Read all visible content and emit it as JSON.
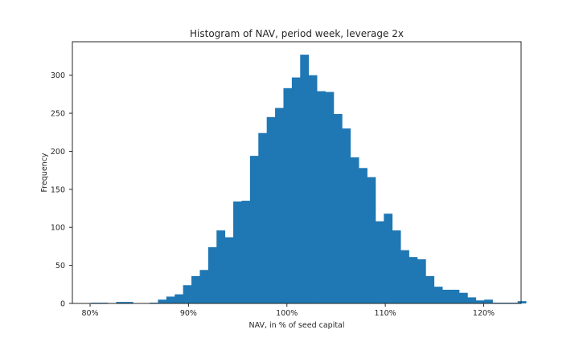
{
  "chart_data": {
    "type": "bar",
    "title": "Histogram of NAV, period week, leverage 2x",
    "xlabel": "NAV, in % of seed capital",
    "ylabel": "Frequency",
    "xlim": [
      78.2,
      123.8
    ],
    "ylim": [
      0,
      344
    ],
    "xticks": [
      {
        "value": 80,
        "label": "80%"
      },
      {
        "value": 90,
        "label": "90%"
      },
      {
        "value": 100,
        "label": "100%"
      },
      {
        "value": 110,
        "label": "110%"
      },
      {
        "value": 120,
        "label": "120%"
      }
    ],
    "yticks": [
      {
        "value": 0,
        "label": "0"
      },
      {
        "value": 50,
        "label": "50"
      },
      {
        "value": 100,
        "label": "100"
      },
      {
        "value": 150,
        "label": "150"
      },
      {
        "value": 200,
        "label": "200"
      },
      {
        "value": 250,
        "label": "250"
      },
      {
        "value": 300,
        "label": "300"
      }
    ],
    "bin_start": 80.1,
    "bin_width": 0.85,
    "values": [
      1,
      1,
      0,
      2,
      2,
      0,
      0,
      1,
      5,
      9,
      12,
      24,
      36,
      44,
      74,
      96,
      87,
      134,
      135,
      194,
      224,
      245,
      257,
      283,
      297,
      327,
      300,
      279,
      278,
      249,
      230,
      192,
      178,
      166,
      108,
      118,
      96,
      70,
      61,
      58,
      36,
      22,
      18,
      18,
      14,
      8,
      4,
      5,
      1,
      1,
      1,
      3
    ],
    "bar_color": "#1f77b4",
    "grid": false,
    "legend": "none"
  }
}
